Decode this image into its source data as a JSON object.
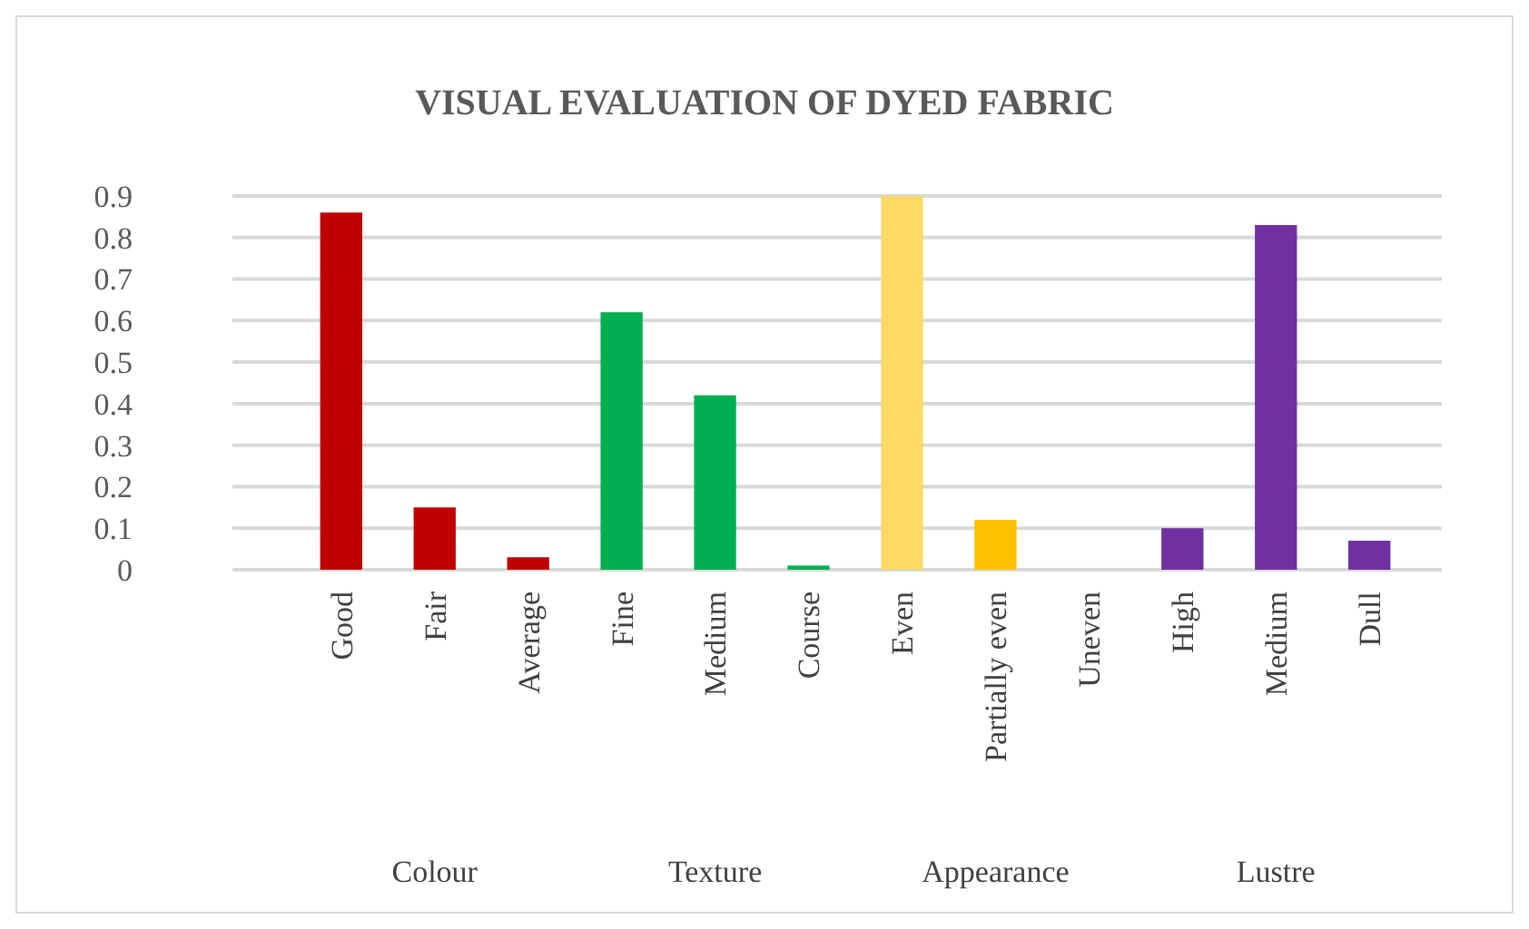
{
  "chart_data": {
    "type": "bar",
    "title": "VISUAL EVALUATION OF DYED FABRIC",
    "categories": [
      "Good",
      "Fair",
      "Average",
      "Fine",
      "Medium",
      "Course",
      "Even",
      "Partially even",
      "Uneven",
      "High",
      "Medium",
      "Dull"
    ],
    "values": [
      0.86,
      0.15,
      0.03,
      0.62,
      0.42,
      0.01,
      0.9,
      0.12,
      0,
      0.1,
      0.83,
      0.07
    ],
    "colors": [
      "#c00000",
      "#c00000",
      "#c00000",
      "#00b050",
      "#00b050",
      "#00b050",
      "#ffd966",
      "#ffc000",
      "#ffc000",
      "#7030a0",
      "#7030a0",
      "#7030a0"
    ],
    "ylim": [
      0,
      0.9
    ],
    "yticks": [
      0,
      0.1,
      0.2,
      0.3,
      0.4,
      0.5,
      0.6,
      0.7,
      0.8,
      0.9
    ],
    "grid": "y",
    "annotations": [
      "Colour",
      "Texture",
      "Appearance",
      "Lustre"
    ]
  }
}
